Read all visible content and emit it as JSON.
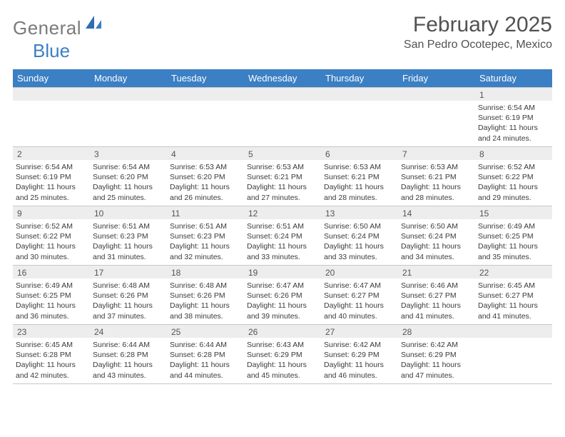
{
  "brand": {
    "part1": "General",
    "part2": "Blue"
  },
  "title": "February 2025",
  "location": "San Pedro Ocotepec, Mexico",
  "colors": {
    "headerBar": "#3b7fc4",
    "stripBg": "#ededed",
    "text": "#3a3a3a",
    "titleText": "#525252"
  },
  "weekdays": [
    "Sunday",
    "Monday",
    "Tuesday",
    "Wednesday",
    "Thursday",
    "Friday",
    "Saturday"
  ],
  "weeks": [
    [
      {
        "day": null
      },
      {
        "day": null
      },
      {
        "day": null
      },
      {
        "day": null
      },
      {
        "day": null
      },
      {
        "day": null
      },
      {
        "day": "1",
        "sunrise": "Sunrise: 6:54 AM",
        "sunset": "Sunset: 6:19 PM",
        "daylight": "Daylight: 11 hours and 24 minutes."
      }
    ],
    [
      {
        "day": "2",
        "sunrise": "Sunrise: 6:54 AM",
        "sunset": "Sunset: 6:19 PM",
        "daylight": "Daylight: 11 hours and 25 minutes."
      },
      {
        "day": "3",
        "sunrise": "Sunrise: 6:54 AM",
        "sunset": "Sunset: 6:20 PM",
        "daylight": "Daylight: 11 hours and 25 minutes."
      },
      {
        "day": "4",
        "sunrise": "Sunrise: 6:53 AM",
        "sunset": "Sunset: 6:20 PM",
        "daylight": "Daylight: 11 hours and 26 minutes."
      },
      {
        "day": "5",
        "sunrise": "Sunrise: 6:53 AM",
        "sunset": "Sunset: 6:21 PM",
        "daylight": "Daylight: 11 hours and 27 minutes."
      },
      {
        "day": "6",
        "sunrise": "Sunrise: 6:53 AM",
        "sunset": "Sunset: 6:21 PM",
        "daylight": "Daylight: 11 hours and 28 minutes."
      },
      {
        "day": "7",
        "sunrise": "Sunrise: 6:53 AM",
        "sunset": "Sunset: 6:21 PM",
        "daylight": "Daylight: 11 hours and 28 minutes."
      },
      {
        "day": "8",
        "sunrise": "Sunrise: 6:52 AM",
        "sunset": "Sunset: 6:22 PM",
        "daylight": "Daylight: 11 hours and 29 minutes."
      }
    ],
    [
      {
        "day": "9",
        "sunrise": "Sunrise: 6:52 AM",
        "sunset": "Sunset: 6:22 PM",
        "daylight": "Daylight: 11 hours and 30 minutes."
      },
      {
        "day": "10",
        "sunrise": "Sunrise: 6:51 AM",
        "sunset": "Sunset: 6:23 PM",
        "daylight": "Daylight: 11 hours and 31 minutes."
      },
      {
        "day": "11",
        "sunrise": "Sunrise: 6:51 AM",
        "sunset": "Sunset: 6:23 PM",
        "daylight": "Daylight: 11 hours and 32 minutes."
      },
      {
        "day": "12",
        "sunrise": "Sunrise: 6:51 AM",
        "sunset": "Sunset: 6:24 PM",
        "daylight": "Daylight: 11 hours and 33 minutes."
      },
      {
        "day": "13",
        "sunrise": "Sunrise: 6:50 AM",
        "sunset": "Sunset: 6:24 PM",
        "daylight": "Daylight: 11 hours and 33 minutes."
      },
      {
        "day": "14",
        "sunrise": "Sunrise: 6:50 AM",
        "sunset": "Sunset: 6:24 PM",
        "daylight": "Daylight: 11 hours and 34 minutes."
      },
      {
        "day": "15",
        "sunrise": "Sunrise: 6:49 AM",
        "sunset": "Sunset: 6:25 PM",
        "daylight": "Daylight: 11 hours and 35 minutes."
      }
    ],
    [
      {
        "day": "16",
        "sunrise": "Sunrise: 6:49 AM",
        "sunset": "Sunset: 6:25 PM",
        "daylight": "Daylight: 11 hours and 36 minutes."
      },
      {
        "day": "17",
        "sunrise": "Sunrise: 6:48 AM",
        "sunset": "Sunset: 6:26 PM",
        "daylight": "Daylight: 11 hours and 37 minutes."
      },
      {
        "day": "18",
        "sunrise": "Sunrise: 6:48 AM",
        "sunset": "Sunset: 6:26 PM",
        "daylight": "Daylight: 11 hours and 38 minutes."
      },
      {
        "day": "19",
        "sunrise": "Sunrise: 6:47 AM",
        "sunset": "Sunset: 6:26 PM",
        "daylight": "Daylight: 11 hours and 39 minutes."
      },
      {
        "day": "20",
        "sunrise": "Sunrise: 6:47 AM",
        "sunset": "Sunset: 6:27 PM",
        "daylight": "Daylight: 11 hours and 40 minutes."
      },
      {
        "day": "21",
        "sunrise": "Sunrise: 6:46 AM",
        "sunset": "Sunset: 6:27 PM",
        "daylight": "Daylight: 11 hours and 41 minutes."
      },
      {
        "day": "22",
        "sunrise": "Sunrise: 6:45 AM",
        "sunset": "Sunset: 6:27 PM",
        "daylight": "Daylight: 11 hours and 41 minutes."
      }
    ],
    [
      {
        "day": "23",
        "sunrise": "Sunrise: 6:45 AM",
        "sunset": "Sunset: 6:28 PM",
        "daylight": "Daylight: 11 hours and 42 minutes."
      },
      {
        "day": "24",
        "sunrise": "Sunrise: 6:44 AM",
        "sunset": "Sunset: 6:28 PM",
        "daylight": "Daylight: 11 hours and 43 minutes."
      },
      {
        "day": "25",
        "sunrise": "Sunrise: 6:44 AM",
        "sunset": "Sunset: 6:28 PM",
        "daylight": "Daylight: 11 hours and 44 minutes."
      },
      {
        "day": "26",
        "sunrise": "Sunrise: 6:43 AM",
        "sunset": "Sunset: 6:29 PM",
        "daylight": "Daylight: 11 hours and 45 minutes."
      },
      {
        "day": "27",
        "sunrise": "Sunrise: 6:42 AM",
        "sunset": "Sunset: 6:29 PM",
        "daylight": "Daylight: 11 hours and 46 minutes."
      },
      {
        "day": "28",
        "sunrise": "Sunrise: 6:42 AM",
        "sunset": "Sunset: 6:29 PM",
        "daylight": "Daylight: 11 hours and 47 minutes."
      },
      {
        "day": null
      }
    ]
  ]
}
